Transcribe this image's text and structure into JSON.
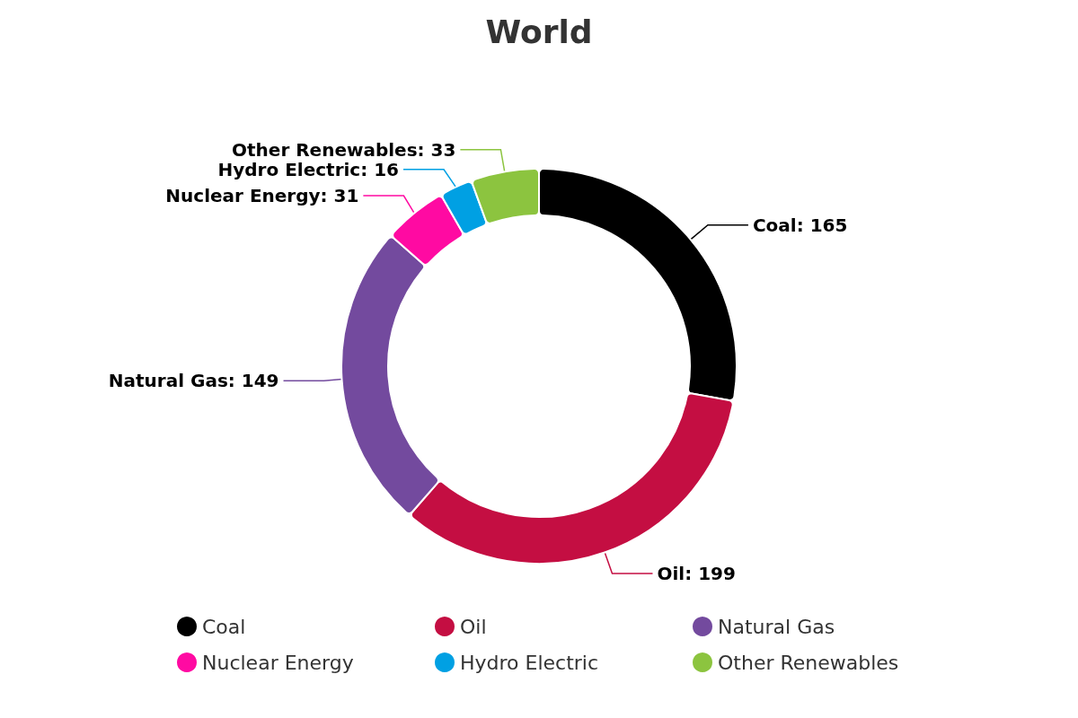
{
  "chart_data": {
    "type": "donut",
    "title": "World",
    "categories": [
      "Coal",
      "Oil",
      "Natural Gas",
      "Nuclear Energy",
      "Hydro Electric",
      "Other Renewables"
    ],
    "values": [
      165,
      199,
      149,
      31,
      16,
      33
    ],
    "value_labels": [
      "Coal: 165",
      "Oil: 199",
      "Natural Gas: 149",
      "Nuclear Energy: 31",
      "Hydro Electric: 16",
      "Other Renewables: 33"
    ],
    "colors": [
      "#000000",
      "#c40e42",
      "#734a9e",
      "#ff0aa2",
      "#00a0e3",
      "#8cc43f"
    ],
    "legend": "bottom"
  }
}
